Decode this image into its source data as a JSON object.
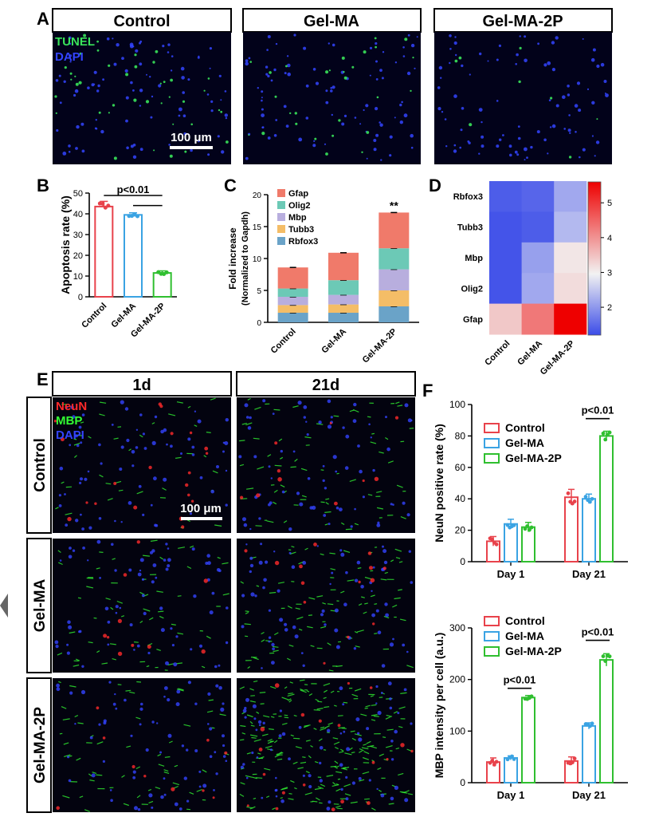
{
  "panel_letters": {
    "a": "A",
    "b": "B",
    "c": "C",
    "d": "D",
    "e": "E",
    "f": "F"
  },
  "panel_a": {
    "titles": [
      "Control",
      "Gel-MA",
      "Gel-MA-2P"
    ],
    "stain_tunel": "TUNEL",
    "stain_dapi": "DAPI",
    "scale_bar": "100 μm",
    "colors": {
      "tunel": "#39e35a",
      "dapi": "#3344ff"
    }
  },
  "panel_e": {
    "col_titles": [
      "1d",
      "21d"
    ],
    "row_titles": [
      "Control",
      "Gel-MA",
      "Gel-MA-2P"
    ],
    "stain_neun": "NeuN",
    "stain_mbp": "MBP",
    "stain_dapi": "DAPI",
    "scale_bar": "100 μm",
    "colors": {
      "neun": "#ff2a2a",
      "mbp": "#33ff33",
      "dapi": "#3344ff"
    }
  },
  "chart_data": [
    {
      "id": "B",
      "type": "bar",
      "ylabel": "Apoptosis rate (%)",
      "categories": [
        "Control",
        "Gel-MA",
        "Gel-MA-2P"
      ],
      "values": [
        43.5,
        39.5,
        11.5
      ],
      "errors": [
        2.5,
        1.0,
        1.0
      ],
      "colors": [
        "#e8424b",
        "#3aa3e3",
        "#2fbf2f"
      ],
      "ylim": [
        0,
        50
      ],
      "yticks": [
        0,
        10,
        20,
        30,
        40,
        50
      ],
      "annotation": "p<0.01"
    },
    {
      "id": "C",
      "type": "bar",
      "stacked": true,
      "ylabel": "Fold increase",
      "ylabel2": "(Normalized to Gapdh)",
      "categories": [
        "Control",
        "Gel-MA",
        "Gel-MA-2P"
      ],
      "series": [
        {
          "name": "Rbfox3",
          "color": "#6aa3c8",
          "values": [
            1.5,
            1.5,
            2.5
          ]
        },
        {
          "name": "Tubb3",
          "color": "#f4bd67",
          "values": [
            1.2,
            1.3,
            2.5
          ]
        },
        {
          "name": "Mbp",
          "color": "#b8aede",
          "values": [
            1.3,
            1.5,
            3.3
          ]
        },
        {
          "name": "Olig2",
          "color": "#6cc9b6",
          "values": [
            1.3,
            2.3,
            3.3
          ]
        },
        {
          "name": "Gfap",
          "color": "#f07a6a",
          "values": [
            3.3,
            4.3,
            5.6
          ]
        }
      ],
      "legend_order": [
        "Gfap",
        "Olig2",
        "Mbp",
        "Tubb3",
        "Rbfox3"
      ],
      "ylim": [
        0,
        20
      ],
      "yticks": [
        0,
        5,
        10,
        15,
        20
      ],
      "annotation": "**"
    },
    {
      "id": "D",
      "type": "heatmap",
      "rows": [
        "Rbfox3",
        "Tubb3",
        "Mbp",
        "Olig2",
        "Gfap"
      ],
      "cols": [
        "Control",
        "Gel-MA",
        "Gel-MA-2P"
      ],
      "values": [
        [
          1.4,
          1.5,
          2.3
        ],
        [
          1.3,
          1.4,
          2.5
        ],
        [
          1.3,
          2.2,
          3.3
        ],
        [
          1.3,
          2.3,
          3.4
        ],
        [
          3.6,
          4.4,
          5.6
        ]
      ],
      "vmin": 1.2,
      "vmax": 5.6,
      "colorbar_ticks": [
        2,
        3,
        4,
        5
      ],
      "color_low": "#3b4ce8",
      "color_mid": "#f2f2f2",
      "color_high": "#ee0000"
    },
    {
      "id": "F-top",
      "type": "bar",
      "ylabel": "NeuN positive rate (%)",
      "categories": [
        "Day 1",
        "Day 21"
      ],
      "series": [
        {
          "name": "Control",
          "color": "#e8424b",
          "values": [
            13,
            41
          ],
          "errors": [
            3,
            5
          ]
        },
        {
          "name": "Gel-MA",
          "color": "#3aa3e3",
          "values": [
            24,
            40
          ],
          "errors": [
            3,
            3
          ]
        },
        {
          "name": "Gel-MA-2P",
          "color": "#2fbf2f",
          "values": [
            22,
            80
          ],
          "errors": [
            3,
            3
          ]
        }
      ],
      "ylim": [
        0,
        100
      ],
      "yticks": [
        0,
        20,
        40,
        60,
        80,
        100
      ],
      "annotation": "p<0.01"
    },
    {
      "id": "F-bottom",
      "type": "bar",
      "ylabel": "MBP intensity per cell (a.u.)",
      "categories": [
        "Day 1",
        "Day 21"
      ],
      "series": [
        {
          "name": "Control",
          "color": "#e8424b",
          "values": [
            40,
            42
          ],
          "errors": [
            8,
            8
          ]
        },
        {
          "name": "Gel-MA",
          "color": "#3aa3e3",
          "values": [
            48,
            110
          ],
          "errors": [
            4,
            6
          ]
        },
        {
          "name": "Gel-MA-2P",
          "color": "#2fbf2f",
          "values": [
            165,
            238
          ],
          "errors": [
            4,
            12
          ]
        }
      ],
      "ylim": [
        0,
        300
      ],
      "yticks": [
        0,
        100,
        200,
        300
      ],
      "annotations": [
        "p<0.01",
        "p<0.01"
      ]
    }
  ]
}
